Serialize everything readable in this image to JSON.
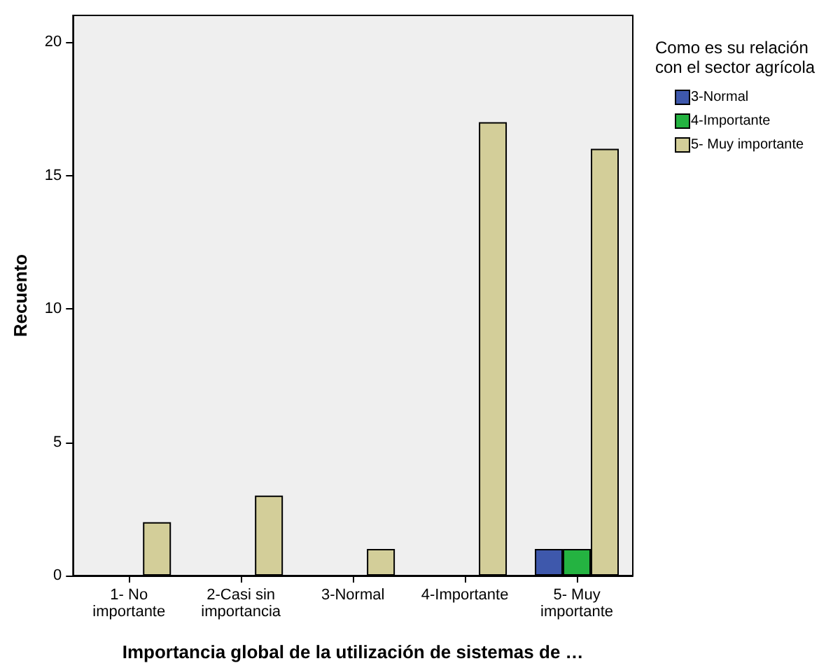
{
  "chart_data": {
    "type": "bar",
    "xlabel": "Importancia global de la utilización de sistemas de …",
    "ylabel": "Recuento",
    "legend_title": "Como es su relación\ncon el sector agrícola",
    "categories": [
      "1- No\nimportante",
      "2-Casi sin\nimportancia",
      "3-Normal",
      "4-Importante",
      "5- Muy\nimportante"
    ],
    "series": [
      {
        "name": "3-Normal",
        "color": "#3e58ac",
        "values": [
          null,
          null,
          null,
          null,
          1
        ]
      },
      {
        "name": "4-Importante",
        "color": "#24b341",
        "values": [
          null,
          null,
          null,
          null,
          1
        ]
      },
      {
        "name": "5- Muy importante",
        "color": "#d3ce99",
        "values": [
          2,
          3,
          1,
          17,
          16
        ]
      }
    ],
    "ylim": [
      0,
      21
    ],
    "yticks": [
      0,
      5,
      10,
      15,
      20
    ],
    "grid": false,
    "legend": "top right"
  }
}
